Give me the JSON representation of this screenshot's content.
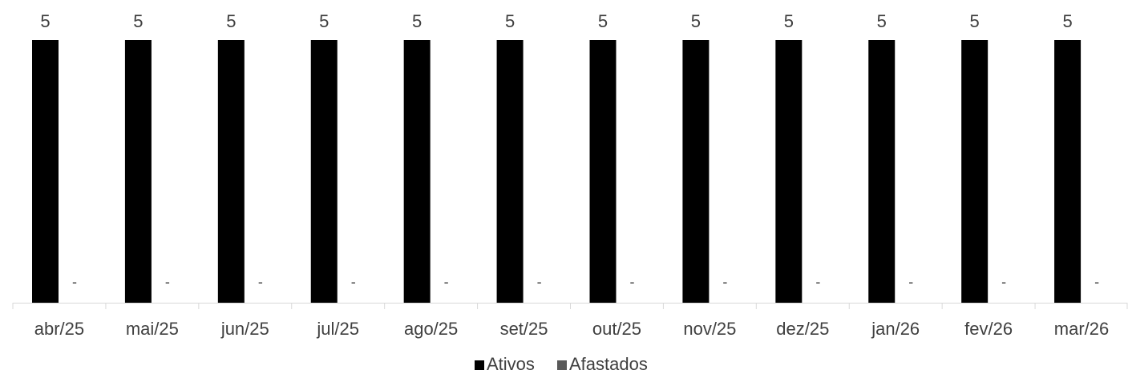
{
  "chart_data": {
    "type": "bar",
    "categories": [
      "abr/25",
      "mai/25",
      "jun/25",
      "jul/25",
      "ago/25",
      "set/25",
      "out/25",
      "nov/25",
      "dez/25",
      "jan/26",
      "fev/26",
      "mar/26"
    ],
    "series": [
      {
        "name": "Ativos",
        "values": [
          5,
          5,
          5,
          5,
          5,
          5,
          5,
          5,
          5,
          5,
          5,
          5
        ],
        "color": "#000000",
        "labels": [
          "5",
          "5",
          "5",
          "5",
          "5",
          "5",
          "5",
          "5",
          "5",
          "5",
          "5",
          "5"
        ]
      },
      {
        "name": "Afastados",
        "values": [
          0,
          0,
          0,
          0,
          0,
          0,
          0,
          0,
          0,
          0,
          0,
          0
        ],
        "color": "#595959",
        "labels": [
          "-",
          "-",
          "-",
          "-",
          "-",
          "-",
          "-",
          "-",
          "-",
          "-",
          "-",
          "-"
        ]
      }
    ],
    "ylim": [
      0,
      5
    ],
    "grid": false,
    "legend": "bottom-center",
    "title": "",
    "xlabel": "",
    "ylabel": ""
  }
}
